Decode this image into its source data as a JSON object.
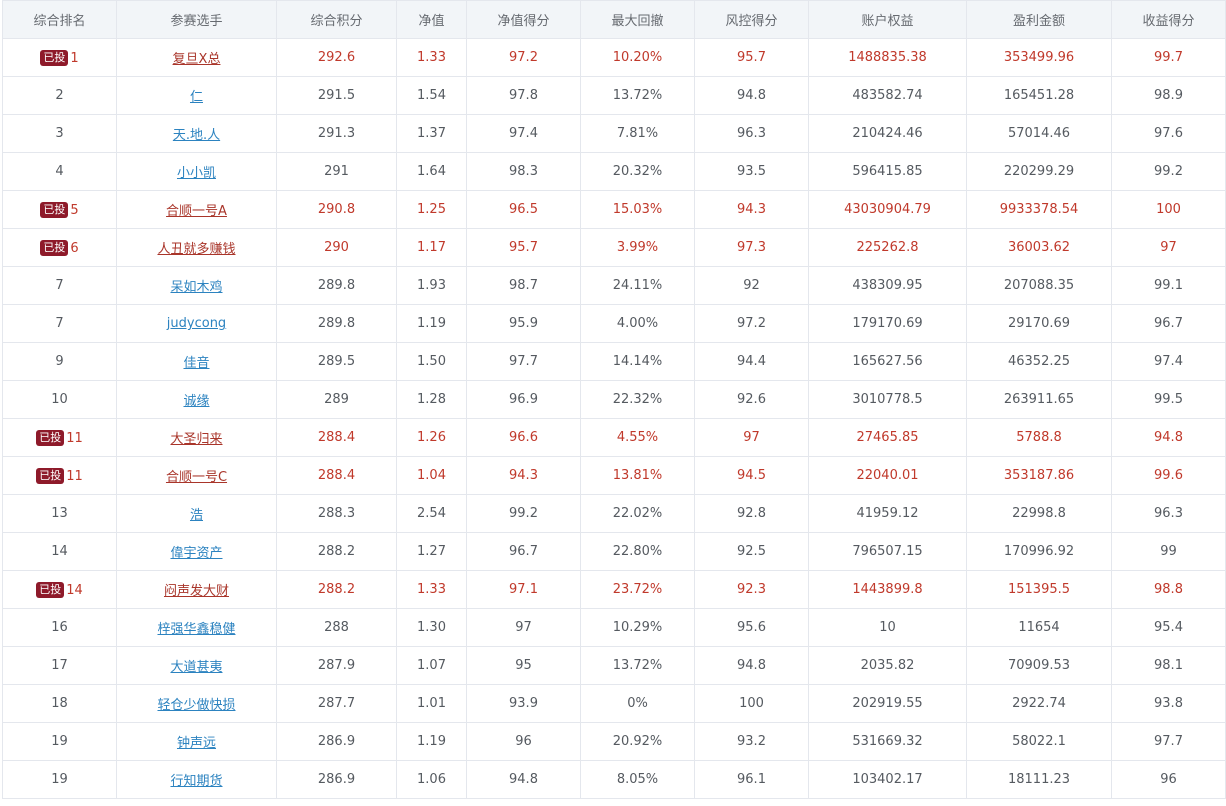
{
  "headers": [
    "综合排名",
    "参赛选手",
    "综合积分",
    "净值",
    "净值得分",
    "最大回撤",
    "风控得分",
    "账户权益",
    "盈利金额",
    "收益得分"
  ],
  "badge_label": "已投",
  "colors": {
    "highlight_text": "#c0392b",
    "badge_bg": "#8e1a2a",
    "link": "#2c83c0",
    "header_bg": "#f2f5f8"
  },
  "rows": [
    {
      "invested": true,
      "rank": "1",
      "name": "复旦X总",
      "score": "292.6",
      "nav": "1.33",
      "nav_score": "97.2",
      "drawdown": "10.20%",
      "risk_score": "95.7",
      "equity": "1488835.38",
      "profit": "353499.96",
      "return_score": "99.7"
    },
    {
      "invested": false,
      "rank": "2",
      "name": "仁",
      "score": "291.5",
      "nav": "1.54",
      "nav_score": "97.8",
      "drawdown": "13.72%",
      "risk_score": "94.8",
      "equity": "483582.74",
      "profit": "165451.28",
      "return_score": "98.9"
    },
    {
      "invested": false,
      "rank": "3",
      "name": "天.地.人",
      "score": "291.3",
      "nav": "1.37",
      "nav_score": "97.4",
      "drawdown": "7.81%",
      "risk_score": "96.3",
      "equity": "210424.46",
      "profit": "57014.46",
      "return_score": "97.6"
    },
    {
      "invested": false,
      "rank": "4",
      "name": "小小凯",
      "score": "291",
      "nav": "1.64",
      "nav_score": "98.3",
      "drawdown": "20.32%",
      "risk_score": "93.5",
      "equity": "596415.85",
      "profit": "220299.29",
      "return_score": "99.2"
    },
    {
      "invested": true,
      "rank": "5",
      "name": "合顺一号A",
      "score": "290.8",
      "nav": "1.25",
      "nav_score": "96.5",
      "drawdown": "15.03%",
      "risk_score": "94.3",
      "equity": "43030904.79",
      "profit": "9933378.54",
      "return_score": "100"
    },
    {
      "invested": true,
      "rank": "6",
      "name": "人丑就多赚钱",
      "score": "290",
      "nav": "1.17",
      "nav_score": "95.7",
      "drawdown": "3.99%",
      "risk_score": "97.3",
      "equity": "225262.8",
      "profit": "36003.62",
      "return_score": "97"
    },
    {
      "invested": false,
      "rank": "7",
      "name": "呆如木鸡",
      "score": "289.8",
      "nav": "1.93",
      "nav_score": "98.7",
      "drawdown": "24.11%",
      "risk_score": "92",
      "equity": "438309.95",
      "profit": "207088.35",
      "return_score": "99.1"
    },
    {
      "invested": false,
      "rank": "7",
      "name": "judycong",
      "score": "289.8",
      "nav": "1.19",
      "nav_score": "95.9",
      "drawdown": "4.00%",
      "risk_score": "97.2",
      "equity": "179170.69",
      "profit": "29170.69",
      "return_score": "96.7"
    },
    {
      "invested": false,
      "rank": "9",
      "name": "佳音",
      "score": "289.5",
      "nav": "1.50",
      "nav_score": "97.7",
      "drawdown": "14.14%",
      "risk_score": "94.4",
      "equity": "165627.56",
      "profit": "46352.25",
      "return_score": "97.4"
    },
    {
      "invested": false,
      "rank": "10",
      "name": "诚缘",
      "score": "289",
      "nav": "1.28",
      "nav_score": "96.9",
      "drawdown": "22.32%",
      "risk_score": "92.6",
      "equity": "3010778.5",
      "profit": "263911.65",
      "return_score": "99.5"
    },
    {
      "invested": true,
      "rank": "11",
      "name": "大圣归来",
      "score": "288.4",
      "nav": "1.26",
      "nav_score": "96.6",
      "drawdown": "4.55%",
      "risk_score": "97",
      "equity": "27465.85",
      "profit": "5788.8",
      "return_score": "94.8"
    },
    {
      "invested": true,
      "rank": "11",
      "name": "合顺一号C",
      "score": "288.4",
      "nav": "1.04",
      "nav_score": "94.3",
      "drawdown": "13.81%",
      "risk_score": "94.5",
      "equity": "22040.01",
      "profit": "353187.86",
      "return_score": "99.6"
    },
    {
      "invested": false,
      "rank": "13",
      "name": "浩",
      "score": "288.3",
      "nav": "2.54",
      "nav_score": "99.2",
      "drawdown": "22.02%",
      "risk_score": "92.8",
      "equity": "41959.12",
      "profit": "22998.8",
      "return_score": "96.3"
    },
    {
      "invested": false,
      "rank": "14",
      "name": "偉宇资产",
      "score": "288.2",
      "nav": "1.27",
      "nav_score": "96.7",
      "drawdown": "22.80%",
      "risk_score": "92.5",
      "equity": "796507.15",
      "profit": "170996.92",
      "return_score": "99"
    },
    {
      "invested": true,
      "rank": "14",
      "name": "闷声发大财",
      "score": "288.2",
      "nav": "1.33",
      "nav_score": "97.1",
      "drawdown": "23.72%",
      "risk_score": "92.3",
      "equity": "1443899.8",
      "profit": "151395.5",
      "return_score": "98.8"
    },
    {
      "invested": false,
      "rank": "16",
      "name": "梓强华鑫稳健",
      "score": "288",
      "nav": "1.30",
      "nav_score": "97",
      "drawdown": "10.29%",
      "risk_score": "95.6",
      "equity": "10",
      "profit": "11654",
      "return_score": "95.4"
    },
    {
      "invested": false,
      "rank": "17",
      "name": "大道甚夷",
      "score": "287.9",
      "nav": "1.07",
      "nav_score": "95",
      "drawdown": "13.72%",
      "risk_score": "94.8",
      "equity": "2035.82",
      "profit": "70909.53",
      "return_score": "98.1"
    },
    {
      "invested": false,
      "rank": "18",
      "name": "轻仓少做快损",
      "score": "287.7",
      "nav": "1.01",
      "nav_score": "93.9",
      "drawdown": "0%",
      "risk_score": "100",
      "equity": "202919.55",
      "profit": "2922.74",
      "return_score": "93.8"
    },
    {
      "invested": false,
      "rank": "19",
      "name": "钟声远",
      "score": "286.9",
      "nav": "1.19",
      "nav_score": "96",
      "drawdown": "20.92%",
      "risk_score": "93.2",
      "equity": "531669.32",
      "profit": "58022.1",
      "return_score": "97.7"
    },
    {
      "invested": false,
      "rank": "19",
      "name": "行知期货",
      "score": "286.9",
      "nav": "1.06",
      "nav_score": "94.8",
      "drawdown": "8.05%",
      "risk_score": "96.1",
      "equity": "103402.17",
      "profit": "18111.23",
      "return_score": "96"
    }
  ]
}
